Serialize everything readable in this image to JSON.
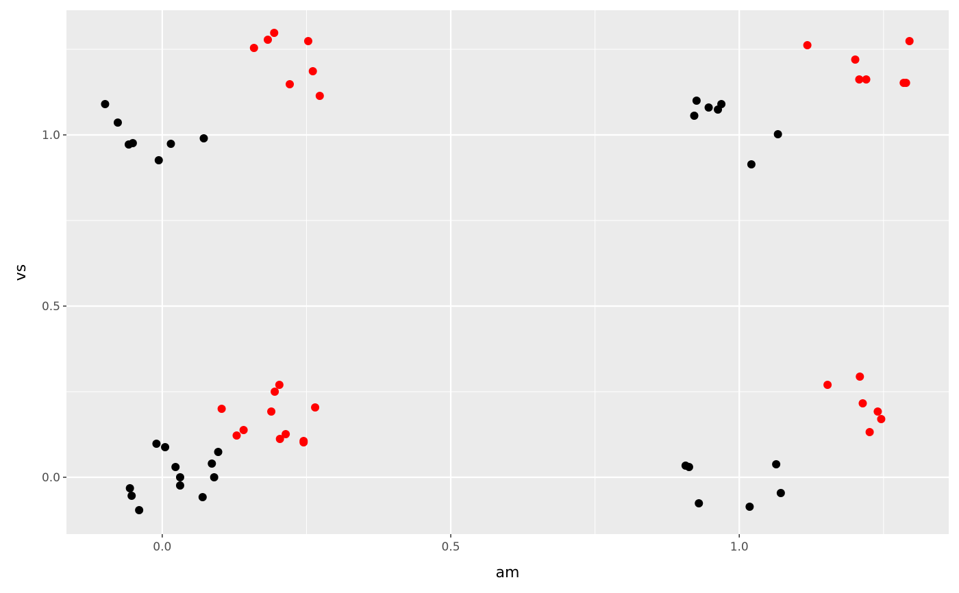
{
  "chart_data": {
    "type": "scatter",
    "x_label": "am",
    "y_label": "vs",
    "xlim": [
      -0.166,
      1.363
    ],
    "ylim": [
      -0.166,
      1.364
    ],
    "xticks": [
      {
        "value": 0,
        "label": "0.0"
      },
      0.5,
      {
        "value": 1,
        "label": "1.0"
      }
    ],
    "yticks": [
      {
        "value": 0,
        "label": "0.0"
      },
      0.5,
      {
        "value": 1,
        "label": "1.0"
      }
    ],
    "x_minor_grid": [
      0.25,
      0.75,
      1.25
    ],
    "y_minor_grid": [
      0.25,
      0.75,
      1.25
    ],
    "grid": true,
    "panel_color": "#ebebeb",
    "grid_color": "#ffffff",
    "series": [
      {
        "color": "#000000",
        "x": [
          -0.099,
          -0.077,
          -0.058,
          -0.051,
          -0.006,
          0.015,
          0.072,
          -0.056,
          -0.053,
          -0.04,
          -0.01,
          0.005,
          0.023,
          0.031,
          0.031,
          0.07,
          0.086,
          0.09,
          0.097,
          0.922,
          0.926,
          0.947,
          0.963,
          0.969,
          1.067,
          1.021,
          0.907,
          0.913,
          0.93,
          1.018,
          1.064,
          1.072
        ],
        "y": [
          1.09,
          1.036,
          0.972,
          0.976,
          0.926,
          0.974,
          0.99,
          -0.032,
          -0.054,
          -0.096,
          0.098,
          0.088,
          0.03,
          0.0,
          -0.024,
          -0.058,
          0.04,
          0.0,
          0.074,
          1.056,
          1.1,
          1.08,
          1.074,
          1.09,
          1.002,
          0.914,
          0.034,
          0.03,
          -0.076,
          -0.086,
          0.038,
          -0.046
        ]
      },
      {
        "color": "#ff0000",
        "x": [
          0.159,
          0.183,
          0.194,
          0.253,
          0.261,
          0.221,
          0.273,
          0.103,
          0.129,
          0.141,
          0.189,
          0.195,
          0.203,
          0.204,
          0.214,
          0.245,
          0.245,
          0.265,
          1.118,
          1.201,
          1.208,
          1.22,
          1.285,
          1.289,
          1.295,
          1.153,
          1.209,
          1.214,
          1.226,
          1.24,
          1.246
        ],
        "y": [
          1.254,
          1.278,
          1.298,
          1.274,
          1.186,
          1.148,
          1.114,
          0.2,
          0.122,
          0.138,
          0.192,
          0.25,
          0.27,
          0.112,
          0.126,
          0.106,
          0.102,
          0.204,
          1.262,
          1.22,
          1.162,
          1.162,
          1.152,
          1.152,
          1.274,
          0.27,
          0.294,
          0.216,
          0.132,
          0.192,
          0.17
        ]
      }
    ]
  }
}
